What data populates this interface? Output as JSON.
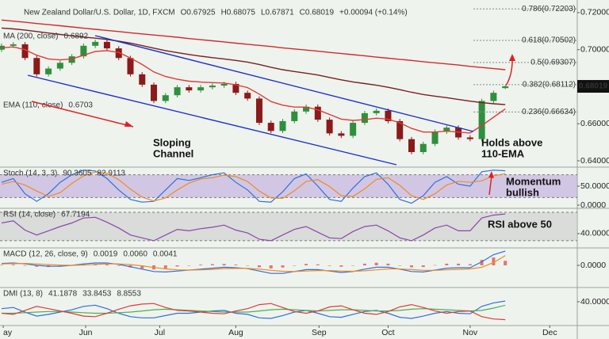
{
  "chart_data": [
    {
      "type": "candlestick",
      "title": "New Zealand Dollar/U.S. Dollar, 1D, FXCM",
      "header_values": [
        "O0.67925",
        "H0.68075",
        "L0.67871",
        "C0.68019",
        "+0.00094 (+0.14%)"
      ],
      "open": [
        0.7,
        0.7021,
        0.7029,
        0.6955,
        0.6867,
        0.6898,
        0.6929,
        0.6964,
        0.7021,
        0.7042,
        0.7007,
        0.6955,
        0.6867,
        0.6811,
        0.6723,
        0.6754,
        0.6797,
        0.678,
        0.6797,
        0.6806,
        0.6815,
        0.6767,
        0.6736,
        0.6605,
        0.6561,
        0.6614,
        0.6666,
        0.6692,
        0.6622,
        0.6548,
        0.6535,
        0.6605,
        0.6657,
        0.667,
        0.6614,
        0.6517,
        0.6447,
        0.6491,
        0.6557,
        0.6579,
        0.6526,
        0.6517,
        0.6723,
        0.67925
      ],
      "high": [
        0.7033,
        0.7041,
        0.7041,
        0.6967,
        0.691,
        0.6941,
        0.6976,
        0.7033,
        0.7054,
        0.7054,
        0.7019,
        0.6967,
        0.6879,
        0.6823,
        0.6766,
        0.6809,
        0.6809,
        0.6809,
        0.6818,
        0.6827,
        0.6827,
        0.6779,
        0.6748,
        0.6617,
        0.6626,
        0.6678,
        0.6704,
        0.6704,
        0.6634,
        0.656,
        0.6617,
        0.6669,
        0.6682,
        0.6682,
        0.6626,
        0.6529,
        0.6503,
        0.6569,
        0.6591,
        0.6591,
        0.6538,
        0.6735,
        0.6779,
        0.68075
      ],
      "low": [
        0.6988,
        0.7009,
        0.6943,
        0.6855,
        0.6855,
        0.6886,
        0.6917,
        0.6952,
        0.7009,
        0.6995,
        0.6943,
        0.6855,
        0.6799,
        0.6711,
        0.6711,
        0.6742,
        0.6768,
        0.6768,
        0.6785,
        0.6794,
        0.6755,
        0.6724,
        0.6593,
        0.6549,
        0.6549,
        0.6602,
        0.6654,
        0.661,
        0.6536,
        0.6523,
        0.6523,
        0.6593,
        0.6645,
        0.6602,
        0.6505,
        0.6435,
        0.6435,
        0.6479,
        0.6545,
        0.6514,
        0.6505,
        0.6505,
        0.6711,
        0.67871
      ],
      "close": [
        0.7021,
        0.7029,
        0.6955,
        0.6867,
        0.6898,
        0.6929,
        0.6964,
        0.7021,
        0.7042,
        0.7007,
        0.6955,
        0.6867,
        0.6811,
        0.6723,
        0.6754,
        0.6797,
        0.678,
        0.6797,
        0.6806,
        0.6815,
        0.6767,
        0.6736,
        0.6605,
        0.6561,
        0.6614,
        0.6666,
        0.6692,
        0.6622,
        0.6548,
        0.6535,
        0.6605,
        0.6657,
        0.667,
        0.6614,
        0.6517,
        0.6447,
        0.6491,
        0.6557,
        0.6579,
        0.6526,
        0.6517,
        0.6723,
        0.6767,
        0.68019
      ],
      "up_color": "#2f8f3c",
      "down_color": "#8b1a1a",
      "series": [
        {
          "name": "MA (200, close)",
          "label": "0.6892",
          "color": "#d62828",
          "values": [
            0.716,
            0.7154,
            0.7148,
            0.7141,
            0.7135,
            0.7129,
            0.7123,
            0.7116,
            0.711,
            0.7104,
            0.7098,
            0.7091,
            0.7085,
            0.7079,
            0.7073,
            0.7067,
            0.706,
            0.7054,
            0.7048,
            0.7042,
            0.7035,
            0.7029,
            0.7023,
            0.7017,
            0.701,
            0.7004,
            0.6998,
            0.6992,
            0.6985,
            0.6979,
            0.6973,
            0.6967,
            0.696,
            0.6954,
            0.6948,
            0.6942,
            0.6935,
            0.6929,
            0.6923,
            0.6917,
            0.691,
            0.6904,
            0.6898,
            0.6892
          ]
        },
        {
          "name": "EMA (110, close)",
          "label": "0.6703",
          "color": "#7a1f1f",
          "values": [
            0.7117,
            0.7112,
            0.7106,
            0.7098,
            0.709,
            0.7082,
            0.7075,
            0.7068,
            0.7062,
            0.7055,
            0.7046,
            0.7035,
            0.7022,
            0.7008,
            0.6995,
            0.6984,
            0.6974,
            0.6965,
            0.6957,
            0.695,
            0.6942,
            0.6933,
            0.692,
            0.6905,
            0.6892,
            0.6882,
            0.6873,
            0.6863,
            0.685,
            0.6837,
            0.6826,
            0.6817,
            0.6808,
            0.6797,
            0.6784,
            0.677,
            0.6758,
            0.6749,
            0.6741,
            0.6731,
            0.6722,
            0.6714,
            0.6708,
            0.6703
          ]
        },
        {
          "color": "#e53935",
          "values": [
            0.701,
            0.7015,
            0.7,
            0.697,
            0.695,
            0.6945,
            0.695,
            0.697,
            0.699,
            0.6995,
            0.6985,
            0.6955,
            0.692,
            0.688,
            0.6855,
            0.684,
            0.683,
            0.6825,
            0.6822,
            0.682,
            0.681,
            0.6795,
            0.676,
            0.672,
            0.67,
            0.669,
            0.669,
            0.6675,
            0.665,
            0.6625,
            0.6618,
            0.6622,
            0.663,
            0.6625,
            0.6605,
            0.6575,
            0.6555,
            0.6555,
            0.656,
            0.6555,
            0.655,
            0.659,
            0.6635,
            0.668
          ]
        }
      ],
      "fib_levels": [
        {
          "value": 0.72203,
          "label": "0.786(0.72203)",
          "color": "#333333"
        },
        {
          "value": 0.70502,
          "label": "0.618(0.70502)",
          "color": "#333333"
        },
        {
          "value": 0.69307,
          "label": "0.5(0.69307)",
          "color": "#6aa84f"
        },
        {
          "value": 0.68112,
          "label": "0.382(0.68112)",
          "color": "#333333"
        },
        {
          "value": 0.66634,
          "label": "0.236(0.66634)",
          "color": "#333333"
        }
      ],
      "annotations": [
        {
          "lines": [
            "Sloping",
            "Channel"
          ]
        },
        {
          "lines": [
            "Holds above",
            "110-EMA"
          ]
        }
      ],
      "xlim": [
        -0.135,
        49.15
      ],
      "xticks": [
        {
          "value": 0.14,
          "label": "ay"
        },
        {
          "value": 7.18,
          "label": "Jun"
        },
        {
          "value": 13.5,
          "label": "Jul"
        },
        {
          "value": 20.0,
          "label": "Aug"
        },
        {
          "value": 27.1,
          "label": "Sep"
        },
        {
          "value": 33.0,
          "label": "Oct"
        },
        {
          "value": 40.0,
          "label": "Nov"
        },
        {
          "value": 46.8,
          "label": "Dec"
        }
      ],
      "ylim": [
        0.637,
        0.7234
      ],
      "yticks": [
        {
          "value": 0.72,
          "label": "0.72000"
        },
        {
          "value": 0.7,
          "label": "0.70000"
        },
        {
          "value": 0.66,
          "label": "0.66000"
        },
        {
          "value": 0.64,
          "label": "0.64000"
        }
      ]
    },
    {
      "type": "line",
      "title": "Stoch (14, 3, 3)",
      "series": [
        {
          "label": "90.3605",
          "color": "#2f6fdc",
          "values": [
            60,
            70,
            30,
            10,
            30,
            60,
            80,
            92,
            90,
            70,
            40,
            15,
            8,
            10,
            40,
            70,
            65,
            72,
            80,
            85,
            60,
            40,
            10,
            8,
            35,
            70,
            82,
            50,
            15,
            10,
            45,
            75,
            85,
            55,
            15,
            5,
            25,
            60,
            75,
            55,
            50,
            88,
            92,
            90.3605
          ]
        },
        {
          "label": "82.9113",
          "color": "#f08a24",
          "values": [
            55,
            62,
            53,
            37,
            23,
            33,
            57,
            77,
            87,
            84,
            67,
            42,
            21,
            11,
            19,
            40,
            58,
            69,
            72,
            79,
            75,
            62,
            37,
            19,
            18,
            38,
            62,
            67,
            49,
            25,
            23,
            43,
            68,
            72,
            52,
            25,
            15,
            30,
            53,
            63,
            60,
            64,
            77,
            82.9113
          ]
        }
      ],
      "bands": [
        {
          "from": 20,
          "to": 80,
          "color": "#b9a3dd"
        }
      ],
      "annotations": [
        {
          "lines": [
            "Momentum",
            "bullish"
          ]
        }
      ],
      "ylim": [
        -6.25,
        97.9
      ],
      "yticks": [
        {
          "value": 50,
          "label": "50.0000"
        },
        {
          "value": 0,
          "label": "0.0000"
        }
      ]
    },
    {
      "type": "line",
      "title": "RSI (14, close)",
      "series": [
        {
          "label": "67.7194",
          "color": "#8e44ad",
          "values": [
            55,
            58,
            45,
            38,
            44,
            50,
            55,
            62,
            63,
            56,
            48,
            38,
            34,
            30,
            38,
            46,
            44,
            47,
            49,
            52,
            45,
            41,
            32,
            30,
            38,
            46,
            50,
            42,
            34,
            33,
            43,
            50,
            52,
            44,
            34,
            30,
            38,
            48,
            52,
            44,
            44,
            62,
            66,
            67.7194
          ]
        }
      ],
      "bands": [
        {
          "from": 30,
          "to": 70,
          "color": "#c8c8c8"
        }
      ],
      "annotations": [
        {
          "lines": [
            "RSI above 50"
          ]
        }
      ],
      "ylim": [
        21,
        74.5
      ],
      "yticks": [
        {
          "value": 40,
          "label": "40.0000"
        }
      ]
    },
    {
      "type": "combo",
      "title": "MACD (12, 26, close, 9)",
      "series": [
        {
          "kind": "bar",
          "label": "0.0019",
          "color": "#e57373",
          "values": [
            0.0002,
            0.0003,
            -0.0002,
            -0.0006,
            -0.0007,
            -0.0005,
            0.0,
            0.0005,
            0.0006,
            0.0004,
            -0.0002,
            -0.0009,
            -0.0014,
            -0.0017,
            -0.0013,
            -0.0005,
            0.0,
            0.0003,
            0.0005,
            0.0006,
            0.0003,
            -0.0001,
            -0.0008,
            -0.0013,
            -0.0009,
            0.0,
            0.0006,
            0.0004,
            -0.0002,
            -0.0006,
            -0.0001,
            0.0007,
            0.0011,
            0.0007,
            -0.0001,
            -0.0008,
            -0.0007,
            0.0001,
            0.0007,
            0.0007,
            0.0005,
            0.0023,
            0.0033,
            0.0019
          ]
        },
        {
          "kind": "line",
          "label": "0.0060",
          "color": "#2f6fdc",
          "values": [
            0.0008,
            0.001,
            0.0006,
            0.0,
            -0.0004,
            -0.0004,
            0.0,
            0.0006,
            0.001,
            0.001,
            0.0004,
            -0.0006,
            -0.0016,
            -0.0026,
            -0.0028,
            -0.0024,
            -0.002,
            -0.0016,
            -0.0012,
            -0.0008,
            -0.001,
            -0.0014,
            -0.0024,
            -0.0034,
            -0.0034,
            -0.0026,
            -0.0018,
            -0.0018,
            -0.0024,
            -0.003,
            -0.0026,
            -0.0016,
            -0.0008,
            -0.0008,
            -0.0016,
            -0.0026,
            -0.0028,
            -0.002,
            -0.0012,
            -0.001,
            -0.001,
            0.0015,
            0.0045,
            0.006
          ]
        },
        {
          "kind": "line",
          "label": "0.0041",
          "color": "#f08a24",
          "values": [
            0.0006,
            0.0007,
            0.0008,
            0.0006,
            0.0003,
            0.0001,
            0.0,
            0.0001,
            0.0004,
            0.0006,
            0.0006,
            0.0003,
            -0.0002,
            -0.0009,
            -0.0015,
            -0.0019,
            -0.002,
            -0.0019,
            -0.0017,
            -0.0014,
            -0.0013,
            -0.0013,
            -0.0016,
            -0.0021,
            -0.0025,
            -0.0026,
            -0.0024,
            -0.0022,
            -0.0022,
            -0.0024,
            -0.0025,
            -0.0023,
            -0.0019,
            -0.0015,
            -0.0015,
            -0.0018,
            -0.0021,
            -0.0021,
            -0.0019,
            -0.0017,
            -0.0015,
            -0.0008,
            0.0012,
            0.0041
          ]
        }
      ],
      "ylim": [
        -0.009,
        0.007
      ],
      "yticks": [
        {
          "value": 0,
          "label": "0.0000"
        }
      ]
    },
    {
      "type": "line",
      "title": "DMI (13, 8)",
      "series": [
        {
          "label": "41.1878",
          "color": "#2f6fdc",
          "values": [
            28,
            30,
            22,
            15,
            18,
            22,
            26,
            32,
            34,
            28,
            20,
            14,
            12,
            12,
            16,
            20,
            20,
            22,
            24,
            25,
            20,
            18,
            12,
            11,
            16,
            22,
            25,
            20,
            14,
            13,
            18,
            23,
            25,
            20,
            13,
            11,
            15,
            20,
            23,
            20,
            19,
            32,
            38,
            41.1878
          ]
        },
        {
          "label": "33.8453",
          "color": "#4caf50",
          "values": [
            20,
            20,
            21,
            22,
            23,
            23,
            22,
            21,
            20,
            20,
            21,
            22,
            24,
            26,
            27,
            26,
            25,
            24,
            23,
            22,
            22,
            22,
            24,
            26,
            27,
            26,
            25,
            24,
            25,
            26,
            26,
            25,
            24,
            24,
            25,
            27,
            28,
            27,
            26,
            25,
            24,
            25,
            29,
            33.8453
          ]
        },
        {
          "label": "8.8553",
          "color": "#e53935",
          "values": [
            20,
            18,
            25,
            32,
            28,
            24,
            20,
            15,
            14,
            20,
            27,
            33,
            36,
            37,
            30,
            25,
            24,
            22,
            20,
            19,
            24,
            28,
            35,
            37,
            30,
            23,
            20,
            24,
            31,
            33,
            26,
            20,
            18,
            23,
            31,
            35,
            30,
            24,
            20,
            23,
            24,
            14,
            10,
            8.8553
          ]
        }
      ],
      "ylim": [
        0,
        63.4
      ],
      "yticks": [
        {
          "value": 40,
          "label": "40.0000"
        }
      ]
    }
  ]
}
